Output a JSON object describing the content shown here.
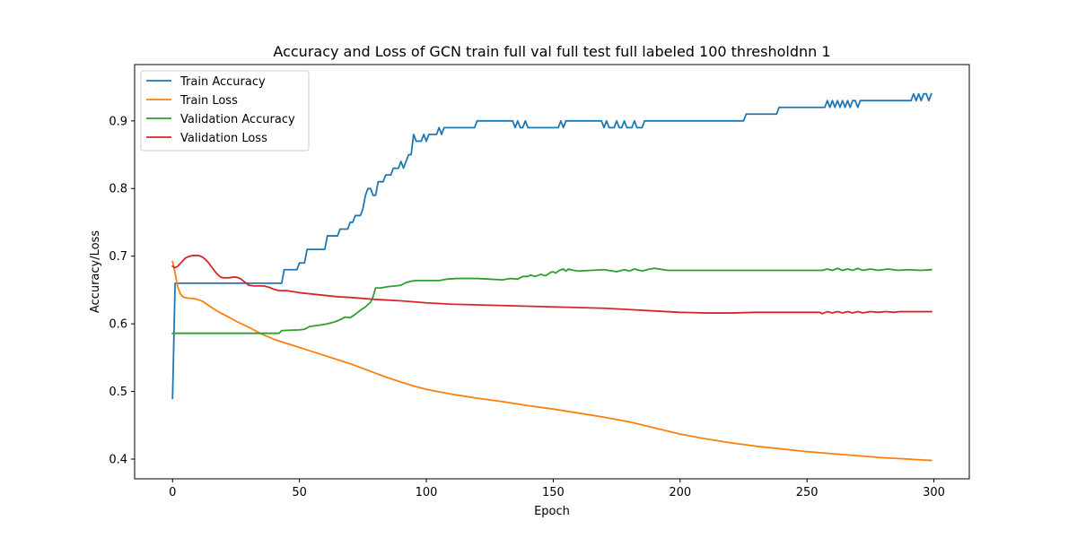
{
  "chart_data": {
    "type": "line",
    "title": "Accuracy and Loss of GCN train full val full test full labeled 100 thresholdnn 1",
    "xlabel": "Epoch",
    "ylabel": "Accuracy/Loss",
    "xlim": [
      -14.95,
      313.95
    ],
    "ylim": [
      0.4,
      0.97
    ],
    "xticks": [
      0,
      50,
      100,
      150,
      200,
      250,
      300
    ],
    "yticks": [
      0.4,
      0.5,
      0.6,
      0.7,
      0.8,
      0.9
    ],
    "ytick_labels": [
      "0.4",
      "0.5",
      "0.6",
      "0.7",
      "0.8",
      "0.9"
    ],
    "grid": false,
    "legend_position": "top-left",
    "series": [
      {
        "name": "Train Accuracy",
        "color": "#1f77b4",
        "points": [
          [
            0,
            0.49
          ],
          [
            1,
            0.66
          ],
          [
            43,
            0.66
          ],
          [
            44,
            0.68
          ],
          [
            49,
            0.68
          ],
          [
            50,
            0.69
          ],
          [
            52,
            0.69
          ],
          [
            53,
            0.71
          ],
          [
            60,
            0.71
          ],
          [
            61,
            0.73
          ],
          [
            65,
            0.73
          ],
          [
            66,
            0.74
          ],
          [
            69,
            0.74
          ],
          [
            70,
            0.75
          ],
          [
            71,
            0.75
          ],
          [
            72,
            0.76
          ],
          [
            74,
            0.76
          ],
          [
            75,
            0.77
          ],
          [
            76,
            0.79
          ],
          [
            77,
            0.8
          ],
          [
            78,
            0.8
          ],
          [
            79,
            0.79
          ],
          [
            80,
            0.79
          ],
          [
            81,
            0.81
          ],
          [
            83,
            0.81
          ],
          [
            84,
            0.82
          ],
          [
            86,
            0.82
          ],
          [
            87,
            0.83
          ],
          [
            89,
            0.83
          ],
          [
            90,
            0.84
          ],
          [
            91,
            0.83
          ],
          [
            93,
            0.85
          ],
          [
            94,
            0.85
          ],
          [
            95,
            0.88
          ],
          [
            96,
            0.87
          ],
          [
            98,
            0.87
          ],
          [
            99,
            0.88
          ],
          [
            100,
            0.87
          ],
          [
            101,
            0.88
          ],
          [
            104,
            0.88
          ],
          [
            105,
            0.89
          ],
          [
            106,
            0.88
          ],
          [
            107,
            0.89
          ],
          [
            119,
            0.89
          ],
          [
            120,
            0.9
          ],
          [
            134,
            0.9
          ],
          [
            135,
            0.89
          ],
          [
            136,
            0.9
          ],
          [
            137,
            0.89
          ],
          [
            138,
            0.89
          ],
          [
            139,
            0.9
          ],
          [
            140,
            0.89
          ],
          [
            152,
            0.89
          ],
          [
            153,
            0.9
          ],
          [
            154,
            0.89
          ],
          [
            155,
            0.9
          ],
          [
            169,
            0.9
          ],
          [
            170,
            0.89
          ],
          [
            171,
            0.9
          ],
          [
            172,
            0.89
          ],
          [
            174,
            0.89
          ],
          [
            175,
            0.9
          ],
          [
            176,
            0.89
          ],
          [
            177,
            0.89
          ],
          [
            178,
            0.9
          ],
          [
            179,
            0.89
          ],
          [
            181,
            0.89
          ],
          [
            182,
            0.9
          ],
          [
            183,
            0.89
          ],
          [
            185,
            0.89
          ],
          [
            186,
            0.9
          ],
          [
            225,
            0.9
          ],
          [
            226,
            0.91
          ],
          [
            238,
            0.91
          ],
          [
            239,
            0.92
          ],
          [
            257,
            0.92
          ],
          [
            258,
            0.93
          ],
          [
            259,
            0.92
          ],
          [
            260,
            0.93
          ],
          [
            261,
            0.92
          ],
          [
            262,
            0.93
          ],
          [
            263,
            0.92
          ],
          [
            264,
            0.93
          ],
          [
            265,
            0.92
          ],
          [
            266,
            0.93
          ],
          [
            267,
            0.92
          ],
          [
            268,
            0.93
          ],
          [
            269,
            0.93
          ],
          [
            270,
            0.92
          ],
          [
            271,
            0.93
          ],
          [
            291,
            0.93
          ],
          [
            292,
            0.94
          ],
          [
            293,
            0.93
          ],
          [
            294,
            0.94
          ],
          [
            295,
            0.93
          ],
          [
            296,
            0.94
          ],
          [
            297,
            0.94
          ],
          [
            298,
            0.93
          ],
          [
            299,
            0.94
          ]
        ]
      },
      {
        "name": "Train Loss",
        "color": "#ff7f0e",
        "points": [
          [
            0,
            0.692
          ],
          [
            1,
            0.675
          ],
          [
            2,
            0.655
          ],
          [
            3,
            0.645
          ],
          [
            4,
            0.64
          ],
          [
            6,
            0.638
          ],
          [
            9,
            0.637
          ],
          [
            12,
            0.633
          ],
          [
            15,
            0.625
          ],
          [
            18,
            0.618
          ],
          [
            22,
            0.61
          ],
          [
            26,
            0.602
          ],
          [
            30,
            0.595
          ],
          [
            35,
            0.585
          ],
          [
            40,
            0.577
          ],
          [
            45,
            0.571
          ],
          [
            50,
            0.565
          ],
          [
            55,
            0.559
          ],
          [
            60,
            0.553
          ],
          [
            65,
            0.547
          ],
          [
            70,
            0.541
          ],
          [
            75,
            0.534
          ],
          [
            80,
            0.527
          ],
          [
            85,
            0.52
          ],
          [
            90,
            0.514
          ],
          [
            95,
            0.508
          ],
          [
            100,
            0.503
          ],
          [
            110,
            0.496
          ],
          [
            120,
            0.49
          ],
          [
            130,
            0.485
          ],
          [
            140,
            0.479
          ],
          [
            150,
            0.474
          ],
          [
            160,
            0.468
          ],
          [
            170,
            0.462
          ],
          [
            180,
            0.455
          ],
          [
            190,
            0.446
          ],
          [
            200,
            0.437
          ],
          [
            210,
            0.43
          ],
          [
            220,
            0.424
          ],
          [
            230,
            0.419
          ],
          [
            240,
            0.415
          ],
          [
            250,
            0.411
          ],
          [
            260,
            0.408
          ],
          [
            270,
            0.405
          ],
          [
            280,
            0.402
          ],
          [
            290,
            0.4
          ],
          [
            299,
            0.398
          ]
        ]
      },
      {
        "name": "Validation Accuracy",
        "color": "#2ca02c",
        "points": [
          [
            0,
            0.586
          ],
          [
            42,
            0.586
          ],
          [
            43,
            0.59
          ],
          [
            50,
            0.591
          ],
          [
            52,
            0.592
          ],
          [
            54,
            0.596
          ],
          [
            58,
            0.598
          ],
          [
            61,
            0.6
          ],
          [
            64,
            0.603
          ],
          [
            66,
            0.606
          ],
          [
            68,
            0.61
          ],
          [
            70,
            0.609
          ],
          [
            72,
            0.614
          ],
          [
            74,
            0.62
          ],
          [
            76,
            0.625
          ],
          [
            78,
            0.632
          ],
          [
            79,
            0.64
          ],
          [
            80,
            0.653
          ],
          [
            82,
            0.653
          ],
          [
            85,
            0.655
          ],
          [
            88,
            0.656
          ],
          [
            90,
            0.657
          ],
          [
            92,
            0.661
          ],
          [
            94,
            0.663
          ],
          [
            96,
            0.664
          ],
          [
            100,
            0.664
          ],
          [
            105,
            0.664
          ],
          [
            108,
            0.666
          ],
          [
            112,
            0.667
          ],
          [
            116,
            0.667
          ],
          [
            120,
            0.667
          ],
          [
            125,
            0.666
          ],
          [
            130,
            0.665
          ],
          [
            133,
            0.667
          ],
          [
            136,
            0.666
          ],
          [
            138,
            0.67
          ],
          [
            140,
            0.67
          ],
          [
            141,
            0.672
          ],
          [
            143,
            0.67
          ],
          [
            145,
            0.673
          ],
          [
            147,
            0.671
          ],
          [
            149,
            0.676
          ],
          [
            150,
            0.677
          ],
          [
            151,
            0.675
          ],
          [
            152,
            0.678
          ],
          [
            153,
            0.68
          ],
          [
            154,
            0.681
          ],
          [
            155,
            0.678
          ],
          [
            156,
            0.681
          ],
          [
            158,
            0.679
          ],
          [
            160,
            0.678
          ],
          [
            165,
            0.679
          ],
          [
            170,
            0.68
          ],
          [
            175,
            0.677
          ],
          [
            178,
            0.68
          ],
          [
            180,
            0.678
          ],
          [
            182,
            0.681
          ],
          [
            185,
            0.678
          ],
          [
            188,
            0.681
          ],
          [
            190,
            0.682
          ],
          [
            195,
            0.679
          ],
          [
            200,
            0.679
          ],
          [
            210,
            0.679
          ],
          [
            220,
            0.679
          ],
          [
            230,
            0.679
          ],
          [
            240,
            0.679
          ],
          [
            245,
            0.679
          ],
          [
            250,
            0.679
          ],
          [
            256,
            0.679
          ],
          [
            258,
            0.681
          ],
          [
            260,
            0.679
          ],
          [
            262,
            0.682
          ],
          [
            264,
            0.679
          ],
          [
            266,
            0.681
          ],
          [
            268,
            0.679
          ],
          [
            270,
            0.682
          ],
          [
            272,
            0.679
          ],
          [
            275,
            0.681
          ],
          [
            278,
            0.679
          ],
          [
            282,
            0.681
          ],
          [
            286,
            0.679
          ],
          [
            290,
            0.68
          ],
          [
            295,
            0.679
          ],
          [
            299,
            0.68
          ]
        ]
      },
      {
        "name": "Validation Loss",
        "color": "#d62728",
        "points": [
          [
            0,
            0.685
          ],
          [
            1,
            0.683
          ],
          [
            2,
            0.685
          ],
          [
            3,
            0.689
          ],
          [
            4,
            0.693
          ],
          [
            5,
            0.697
          ],
          [
            6,
            0.699
          ],
          [
            7,
            0.7
          ],
          [
            8,
            0.701
          ],
          [
            9,
            0.701
          ],
          [
            10,
            0.701
          ],
          [
            11,
            0.7
          ],
          [
            12,
            0.698
          ],
          [
            13,
            0.695
          ],
          [
            14,
            0.691
          ],
          [
            15,
            0.686
          ],
          [
            16,
            0.681
          ],
          [
            17,
            0.676
          ],
          [
            18,
            0.672
          ],
          [
            19,
            0.669
          ],
          [
            20,
            0.668
          ],
          [
            22,
            0.668
          ],
          [
            24,
            0.669
          ],
          [
            25,
            0.669
          ],
          [
            26,
            0.668
          ],
          [
            27,
            0.666
          ],
          [
            28,
            0.663
          ],
          [
            29,
            0.66
          ],
          [
            30,
            0.657
          ],
          [
            32,
            0.656
          ],
          [
            34,
            0.656
          ],
          [
            36,
            0.656
          ],
          [
            38,
            0.654
          ],
          [
            40,
            0.651
          ],
          [
            42,
            0.649
          ],
          [
            45,
            0.649
          ],
          [
            50,
            0.646
          ],
          [
            55,
            0.644
          ],
          [
            60,
            0.642
          ],
          [
            65,
            0.64
          ],
          [
            70,
            0.639
          ],
          [
            80,
            0.636
          ],
          [
            90,
            0.634
          ],
          [
            100,
            0.631
          ],
          [
            110,
            0.629
          ],
          [
            120,
            0.628
          ],
          [
            130,
            0.627
          ],
          [
            140,
            0.626
          ],
          [
            150,
            0.625
          ],
          [
            160,
            0.624
          ],
          [
            170,
            0.623
          ],
          [
            180,
            0.621
          ],
          [
            190,
            0.619
          ],
          [
            200,
            0.617
          ],
          [
            210,
            0.616
          ],
          [
            220,
            0.616
          ],
          [
            230,
            0.617
          ],
          [
            240,
            0.617
          ],
          [
            250,
            0.617
          ],
          [
            255,
            0.617
          ],
          [
            256,
            0.615
          ],
          [
            258,
            0.618
          ],
          [
            260,
            0.616
          ],
          [
            262,
            0.618
          ],
          [
            264,
            0.616
          ],
          [
            266,
            0.618
          ],
          [
            268,
            0.616
          ],
          [
            270,
            0.618
          ],
          [
            272,
            0.616
          ],
          [
            275,
            0.618
          ],
          [
            278,
            0.617
          ],
          [
            281,
            0.618
          ],
          [
            284,
            0.617
          ],
          [
            287,
            0.618
          ],
          [
            290,
            0.618
          ],
          [
            295,
            0.618
          ],
          [
            299,
            0.618
          ]
        ]
      }
    ]
  }
}
